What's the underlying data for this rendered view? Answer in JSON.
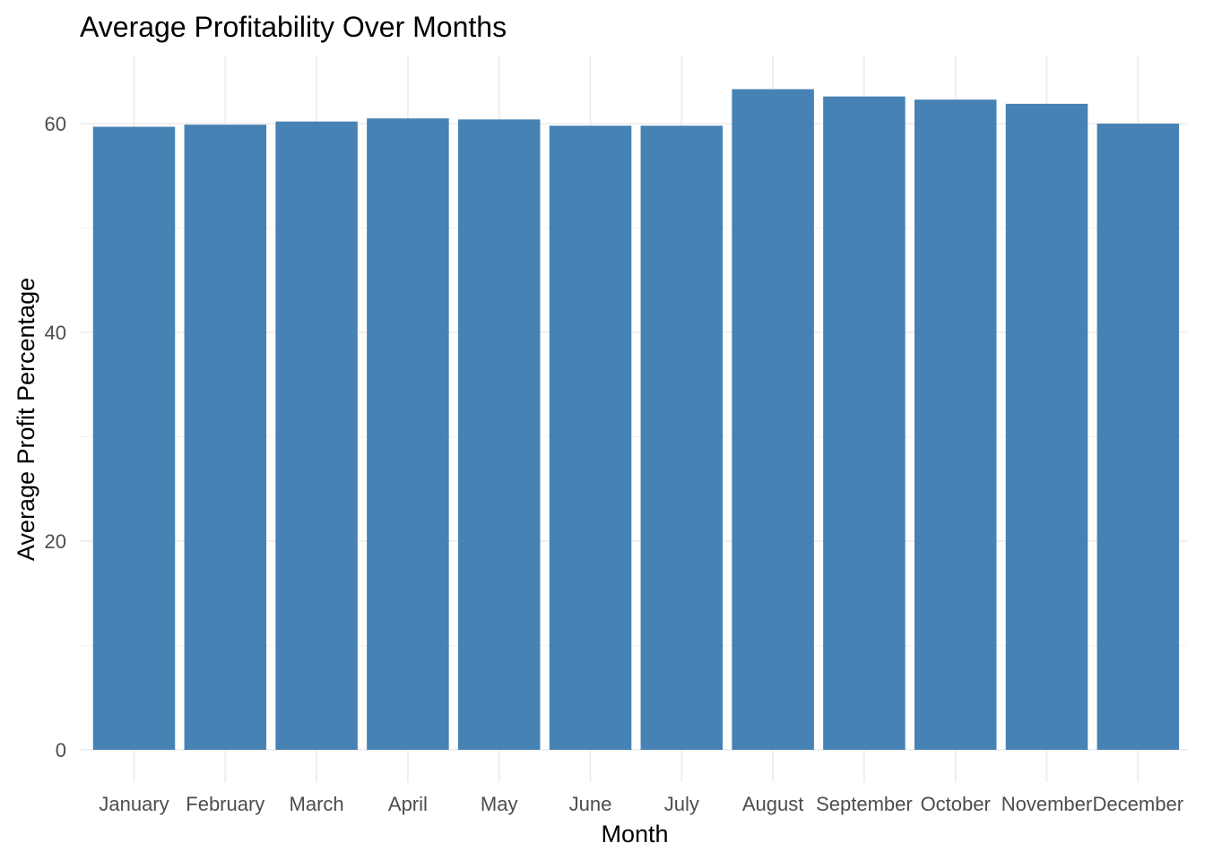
{
  "chart_data": {
    "type": "bar",
    "title": "Average Profitability Over Months",
    "xlabel": "Month",
    "ylabel": "Average Profit Percentage",
    "categories": [
      "January",
      "February",
      "March",
      "April",
      "May",
      "June",
      "July",
      "August",
      "September",
      "October",
      "November",
      "December"
    ],
    "values": [
      59.7,
      59.9,
      60.2,
      60.5,
      60.4,
      59.8,
      59.8,
      63.3,
      62.6,
      62.3,
      61.9,
      60.0
    ],
    "ylim": [
      0,
      65
    ],
    "yticks": [
      0,
      20,
      40,
      60
    ],
    "grid": true,
    "legend": "none",
    "bar_color": "#4682B4"
  }
}
